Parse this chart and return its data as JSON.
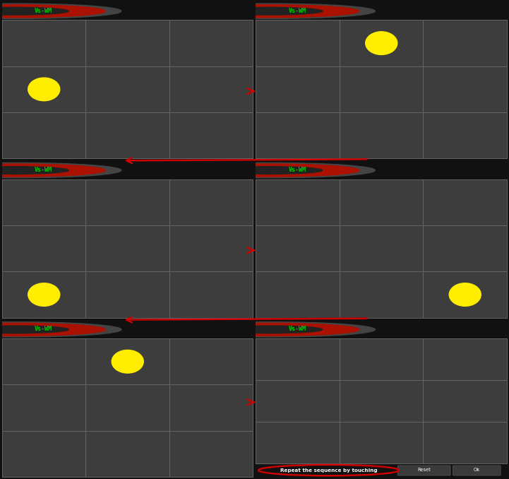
{
  "bg_color": "#111111",
  "panel_bg": "#3d3d3d",
  "cell_line_color": "#666666",
  "header_bg": "#000000",
  "header_text_color": "#00cc00",
  "header_text": "Vs-WM",
  "footer_bg": "#000000",
  "grid_cols": 3,
  "grid_rows": 3,
  "circle_color": "#ffee00",
  "arrow_color": "#cc0000",
  "bottom_text": "Repeat the sequence by touching",
  "button_reset": "Reset",
  "button_ok": "Ok",
  "screens": [
    {
      "id": 0,
      "row": 2,
      "col": 0,
      "circle_grid_col": 0,
      "circle_grid_row": 1
    },
    {
      "id": 1,
      "row": 2,
      "col": 1,
      "circle_grid_col": 1,
      "circle_grid_row": 2
    },
    {
      "id": 2,
      "row": 1,
      "col": 0,
      "circle_grid_col": 0,
      "circle_grid_row": 0
    },
    {
      "id": 3,
      "row": 1,
      "col": 1,
      "circle_grid_col": 2,
      "circle_grid_row": 0
    },
    {
      "id": 4,
      "row": 0,
      "col": 0,
      "circle_grid_col": 1,
      "circle_grid_row": 2
    },
    {
      "id": 5,
      "row": 0,
      "col": 1,
      "circle_grid_col": -1,
      "circle_grid_row": -1
    }
  ]
}
